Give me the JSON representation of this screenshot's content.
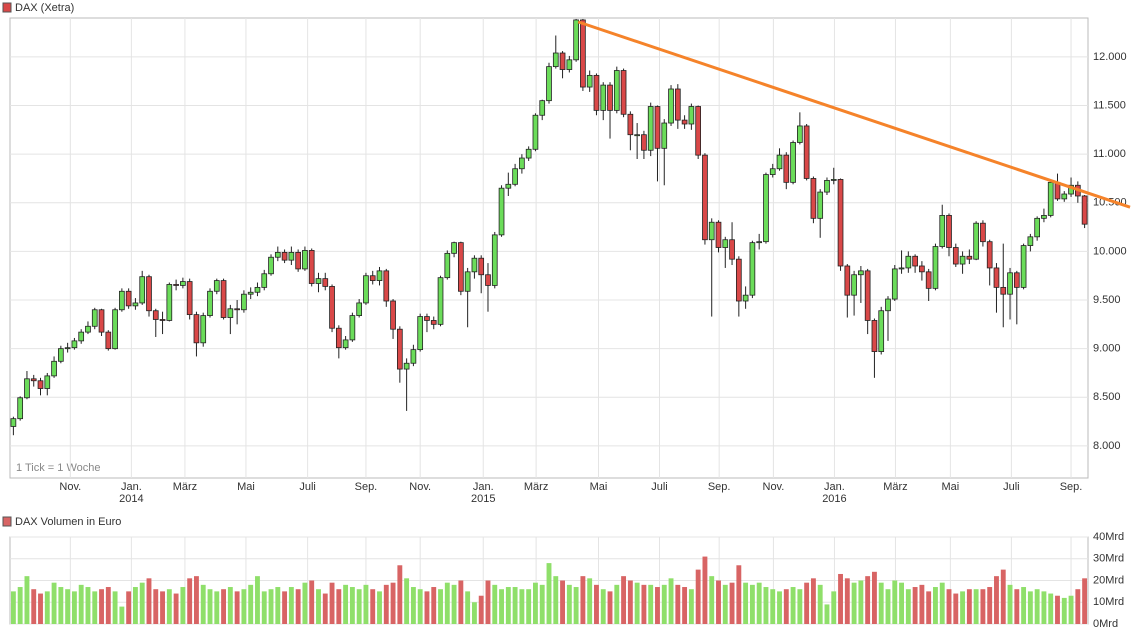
{
  "chart_data": [
    {
      "type": "candlestick",
      "legend": "DAX (Xetra)",
      "note": "1 Tick = 1 Woche",
      "up_color": "#6bdc5a",
      "down_color": "#d94848",
      "grid": true,
      "xlim": [
        -0.5,
        158.5
      ],
      "ylim": [
        7670,
        12400
      ],
      "yticks": [
        {
          "value": 8000,
          "label": "8.000"
        },
        {
          "value": 8500,
          "label": "8.500"
        },
        {
          "value": 9000,
          "label": "9.000"
        },
        {
          "value": 9500,
          "label": "9.500"
        },
        {
          "value": 10000,
          "label": "10.000"
        },
        {
          "value": 10500,
          "label": "10.500"
        },
        {
          "value": 11000,
          "label": "11.000"
        },
        {
          "value": 11500,
          "label": "11.500"
        },
        {
          "value": 12000,
          "label": "12.000"
        }
      ],
      "xticks": [
        {
          "value": 8.4,
          "label": "Nov."
        },
        {
          "value": 17.4,
          "label": "Jan."
        },
        {
          "value": 25.3,
          "label": "März"
        },
        {
          "value": 34.3,
          "label": "Mai"
        },
        {
          "value": 43.4,
          "label": "Juli"
        },
        {
          "value": 52,
          "label": "Sep."
        },
        {
          "value": 60,
          "label": "Nov."
        },
        {
          "value": 69.3,
          "label": "Jan."
        },
        {
          "value": 77.1,
          "label": "März"
        },
        {
          "value": 86.3,
          "label": "Mai"
        },
        {
          "value": 95.3,
          "label": "Juli"
        },
        {
          "value": 104.1,
          "label": "Sep."
        },
        {
          "value": 112.1,
          "label": "Nov."
        },
        {
          "value": 121.1,
          "label": "Jan."
        },
        {
          "value": 130.1,
          "label": "März"
        },
        {
          "value": 138.2,
          "label": "Mai"
        },
        {
          "value": 147.2,
          "label": "Juli"
        },
        {
          "value": 156,
          "label": "Sep."
        }
      ],
      "year_labels": [
        {
          "value": 17.4,
          "label": "2014"
        },
        {
          "value": 69.3,
          "label": "2015"
        },
        {
          "value": 121.1,
          "label": "2016"
        }
      ],
      "open": [
        8200,
        8280,
        8495,
        8690,
        8670,
        8590,
        8720,
        8870,
        9000,
        9010,
        9080,
        9170,
        9230,
        9400,
        9170,
        9000,
        9400,
        9590,
        9440,
        9470,
        9740,
        9390,
        9300,
        9290,
        9660,
        9650,
        9690,
        9350,
        9060,
        9340,
        9590,
        9700,
        9320,
        9410,
        9400,
        9560,
        9580,
        9630,
        9770,
        9940,
        9990,
        9910,
        9990,
        9820,
        10010,
        9670,
        9720,
        9640,
        9210,
        9010,
        9090,
        9340,
        9470,
        9750,
        9700,
        9800,
        9490,
        9200,
        8790,
        8850,
        8990,
        9330,
        9290,
        9250,
        9730,
        9980,
        10090,
        9590,
        9790,
        9930,
        9760,
        9650,
        10170,
        10650,
        10690,
        10850,
        10960,
        11050,
        11400,
        11550,
        11900,
        12040,
        11870,
        11970,
        12380,
        11690,
        11810,
        11450,
        11710,
        11450,
        11860,
        11410,
        11200,
        11200,
        11040,
        11490,
        11060,
        11320,
        11670,
        11350,
        11310,
        11490,
        10990,
        10120,
        10300,
        10040,
        10120,
        9920,
        9490,
        9550,
        10090,
        10100,
        10790,
        10850,
        10990,
        10710,
        11120,
        11290,
        10750,
        10340,
        10610,
        10730,
        10740,
        9850,
        9550,
        9760,
        9800,
        9290,
        8970,
        9390,
        9510,
        9820,
        9830,
        9950,
        9850,
        9790,
        9620,
        10050,
        10370,
        10040,
        9870,
        9950,
        9920,
        10290,
        10100,
        9830,
        9630,
        9560,
        9780,
        9630,
        10060,
        10150,
        10340,
        10370,
        10710,
        10540,
        10590,
        10680,
        10570
      ],
      "high": [
        8300,
        8510,
        8770,
        8730,
        8700,
        8750,
        8920,
        9030,
        9060,
        9110,
        9200,
        9280,
        9420,
        9410,
        9190,
        9420,
        9620,
        9620,
        9520,
        9800,
        9760,
        9410,
        9380,
        9680,
        9710,
        9730,
        9720,
        9380,
        9370,
        9620,
        9720,
        9720,
        9450,
        9500,
        9600,
        9630,
        9680,
        9810,
        9970,
        10050,
        10020,
        10050,
        10020,
        10050,
        10030,
        9780,
        9780,
        9660,
        9240,
        9130,
        9370,
        9510,
        9780,
        9800,
        9840,
        9820,
        9510,
        9230,
        8900,
        9040,
        9360,
        9360,
        9330,
        9750,
        10010,
        10100,
        10100,
        9830,
        9960,
        9960,
        9880,
        10200,
        10680,
        10810,
        10900,
        11000,
        11080,
        11420,
        11560,
        11940,
        12220,
        12060,
        12010,
        12390,
        12390,
        11860,
        11830,
        11740,
        11740,
        11900,
        11880,
        11440,
        11320,
        11240,
        11530,
        11500,
        11360,
        11710,
        11720,
        11400,
        11520,
        11500,
        11010,
        10340,
        10320,
        10150,
        10300,
        9950,
        9640,
        10110,
        10180,
        10810,
        10900,
        11060,
        11020,
        11140,
        11430,
        11310,
        10770,
        10640,
        10760,
        10860,
        10750,
        9870,
        9800,
        9850,
        9820,
        9310,
        9430,
        9540,
        9860,
        10010,
        10000,
        9970,
        9900,
        9820,
        10080,
        10480,
        10390,
        10080,
        10000,
        10020,
        10310,
        10320,
        10120,
        9880,
        10080,
        9830,
        9800,
        10080,
        10180,
        10360,
        10440,
        10730,
        10800,
        10620,
        10760,
        10720,
        10580
      ],
      "low": [
        8110,
        8260,
        8480,
        8610,
        8520,
        8520,
        8700,
        8850,
        8960,
        8990,
        9050,
        9150,
        9200,
        9130,
        8980,
        8990,
        9380,
        9410,
        9400,
        9450,
        9330,
        9120,
        9150,
        9280,
        9600,
        9620,
        9300,
        8920,
        9020,
        9320,
        9560,
        9300,
        9150,
        9250,
        9370,
        9510,
        9540,
        9600,
        9750,
        9900,
        9880,
        9860,
        9790,
        9800,
        9640,
        9580,
        9600,
        9170,
        8900,
        8990,
        9070,
        9320,
        9450,
        9660,
        9650,
        9430,
        9100,
        8650,
        8360,
        8820,
        8970,
        9170,
        9200,
        9230,
        9710,
        9940,
        9550,
        9220,
        9720,
        9570,
        9380,
        9620,
        10150,
        10570,
        10670,
        10800,
        10930,
        11030,
        11350,
        11520,
        11880,
        11780,
        11840,
        11950,
        11650,
        11640,
        11400,
        11350,
        11160,
        11420,
        11380,
        11040,
        10950,
        10950,
        10980,
        10720,
        10680,
        11290,
        11260,
        11260,
        11250,
        10950,
        10070,
        9330,
        9990,
        9830,
        9860,
        9330,
        9410,
        9520,
        10020,
        10080,
        10760,
        10830,
        10640,
        10690,
        11100,
        10730,
        10290,
        10140,
        10580,
        10690,
        9800,
        9320,
        9340,
        9470,
        9150,
        8700,
        8940,
        9080,
        9490,
        9770,
        9780,
        9780,
        9700,
        9490,
        9600,
        10030,
        9950,
        9840,
        9770,
        9870,
        9910,
        10050,
        9650,
        9370,
        9220,
        9300,
        9250,
        9610,
        10000,
        10110,
        10300,
        10350,
        10520,
        10510,
        10560,
        10500,
        10240
      ],
      "close": [
        8280,
        8495,
        8690,
        8670,
        8590,
        8720,
        8870,
        9000,
        9010,
        9080,
        9170,
        9230,
        9400,
        9170,
        9000,
        9400,
        9590,
        9440,
        9470,
        9740,
        9390,
        9300,
        9290,
        9660,
        9650,
        9690,
        9350,
        9060,
        9340,
        9590,
        9700,
        9320,
        9410,
        9400,
        9560,
        9580,
        9630,
        9770,
        9940,
        9990,
        9910,
        9990,
        9820,
        10010,
        9670,
        9720,
        9640,
        9210,
        9010,
        9090,
        9340,
        9470,
        9750,
        9700,
        9800,
        9490,
        9200,
        8790,
        8850,
        8990,
        9330,
        9290,
        9250,
        9730,
        9980,
        10090,
        9590,
        9790,
        9930,
        9760,
        9650,
        10170,
        10650,
        10690,
        10850,
        10960,
        11050,
        11400,
        11550,
        11900,
        12040,
        11870,
        11970,
        12380,
        11690,
        11810,
        11450,
        11710,
        11450,
        11860,
        11410,
        11200,
        11200,
        11040,
        11490,
        11060,
        11320,
        11670,
        11350,
        11310,
        11490,
        10990,
        10120,
        10300,
        10040,
        10120,
        9920,
        9490,
        9550,
        10090,
        10100,
        10790,
        10850,
        10990,
        10710,
        11120,
        11290,
        10750,
        10340,
        10610,
        10730,
        10740,
        9850,
        9550,
        9760,
        9800,
        9290,
        8970,
        9390,
        9510,
        9820,
        9830,
        9950,
        9850,
        9790,
        9620,
        10050,
        10370,
        10040,
        9870,
        9950,
        9920,
        10290,
        10100,
        9830,
        9630,
        9560,
        9780,
        9630,
        10060,
        10150,
        10340,
        10370,
        10710,
        10540,
        10590,
        10680,
        10570,
        10280
      ],
      "trendline": {
        "color": "#f5832a",
        "x": [
          83.3,
          164.7
        ],
        "y": [
          12360,
          10455
        ]
      }
    },
    {
      "type": "volume",
      "legend": "DAX Volumen in Euro",
      "up_color": "#8fdf6a",
      "down_color": "#d86464",
      "xlim": [
        -0.5,
        158.5
      ],
      "ylim": [
        0,
        40
      ],
      "yticks": [
        {
          "value": 0,
          "label": "0Mrd"
        },
        {
          "value": 10,
          "label": "10Mrd"
        },
        {
          "value": 20,
          "label": "20Mrd"
        },
        {
          "value": 30,
          "label": "30Mrd"
        },
        {
          "value": 40,
          "label": "40Mrd"
        }
      ],
      "values": [
        15,
        17,
        22,
        16,
        14,
        15,
        19,
        17,
        16,
        15,
        18,
        17,
        15,
        16,
        17,
        15,
        8,
        15,
        17,
        19,
        21,
        16,
        15,
        16,
        14,
        17,
        21,
        22,
        18,
        16,
        15,
        16,
        17,
        15,
        16,
        18,
        22,
        15,
        16,
        17,
        15,
        17,
        16,
        19,
        20,
        16,
        14,
        19,
        16,
        18,
        17,
        16,
        18,
        16,
        15,
        18,
        19,
        27,
        21,
        17,
        16,
        15,
        17,
        16,
        19,
        18,
        20,
        15,
        10,
        13,
        20,
        18,
        16,
        17,
        17,
        16,
        16,
        19,
        18,
        28,
        22,
        20,
        18,
        17,
        22,
        21,
        18,
        16,
        15,
        18,
        22,
        20,
        19,
        18,
        18,
        17,
        18,
        21,
        18,
        17,
        16,
        25,
        31,
        22,
        20,
        18,
        19,
        27,
        19,
        18,
        19,
        17,
        16,
        15,
        16,
        17,
        16,
        19,
        21,
        18,
        9,
        15,
        23,
        21,
        19,
        20,
        22,
        24,
        19,
        16,
        20,
        19,
        16,
        17,
        18,
        15,
        17,
        19,
        16,
        14,
        15,
        16,
        16,
        16,
        17,
        22,
        25,
        18,
        16,
        17,
        15,
        16,
        15,
        14,
        13,
        12,
        13,
        16,
        21
      ]
    }
  ]
}
